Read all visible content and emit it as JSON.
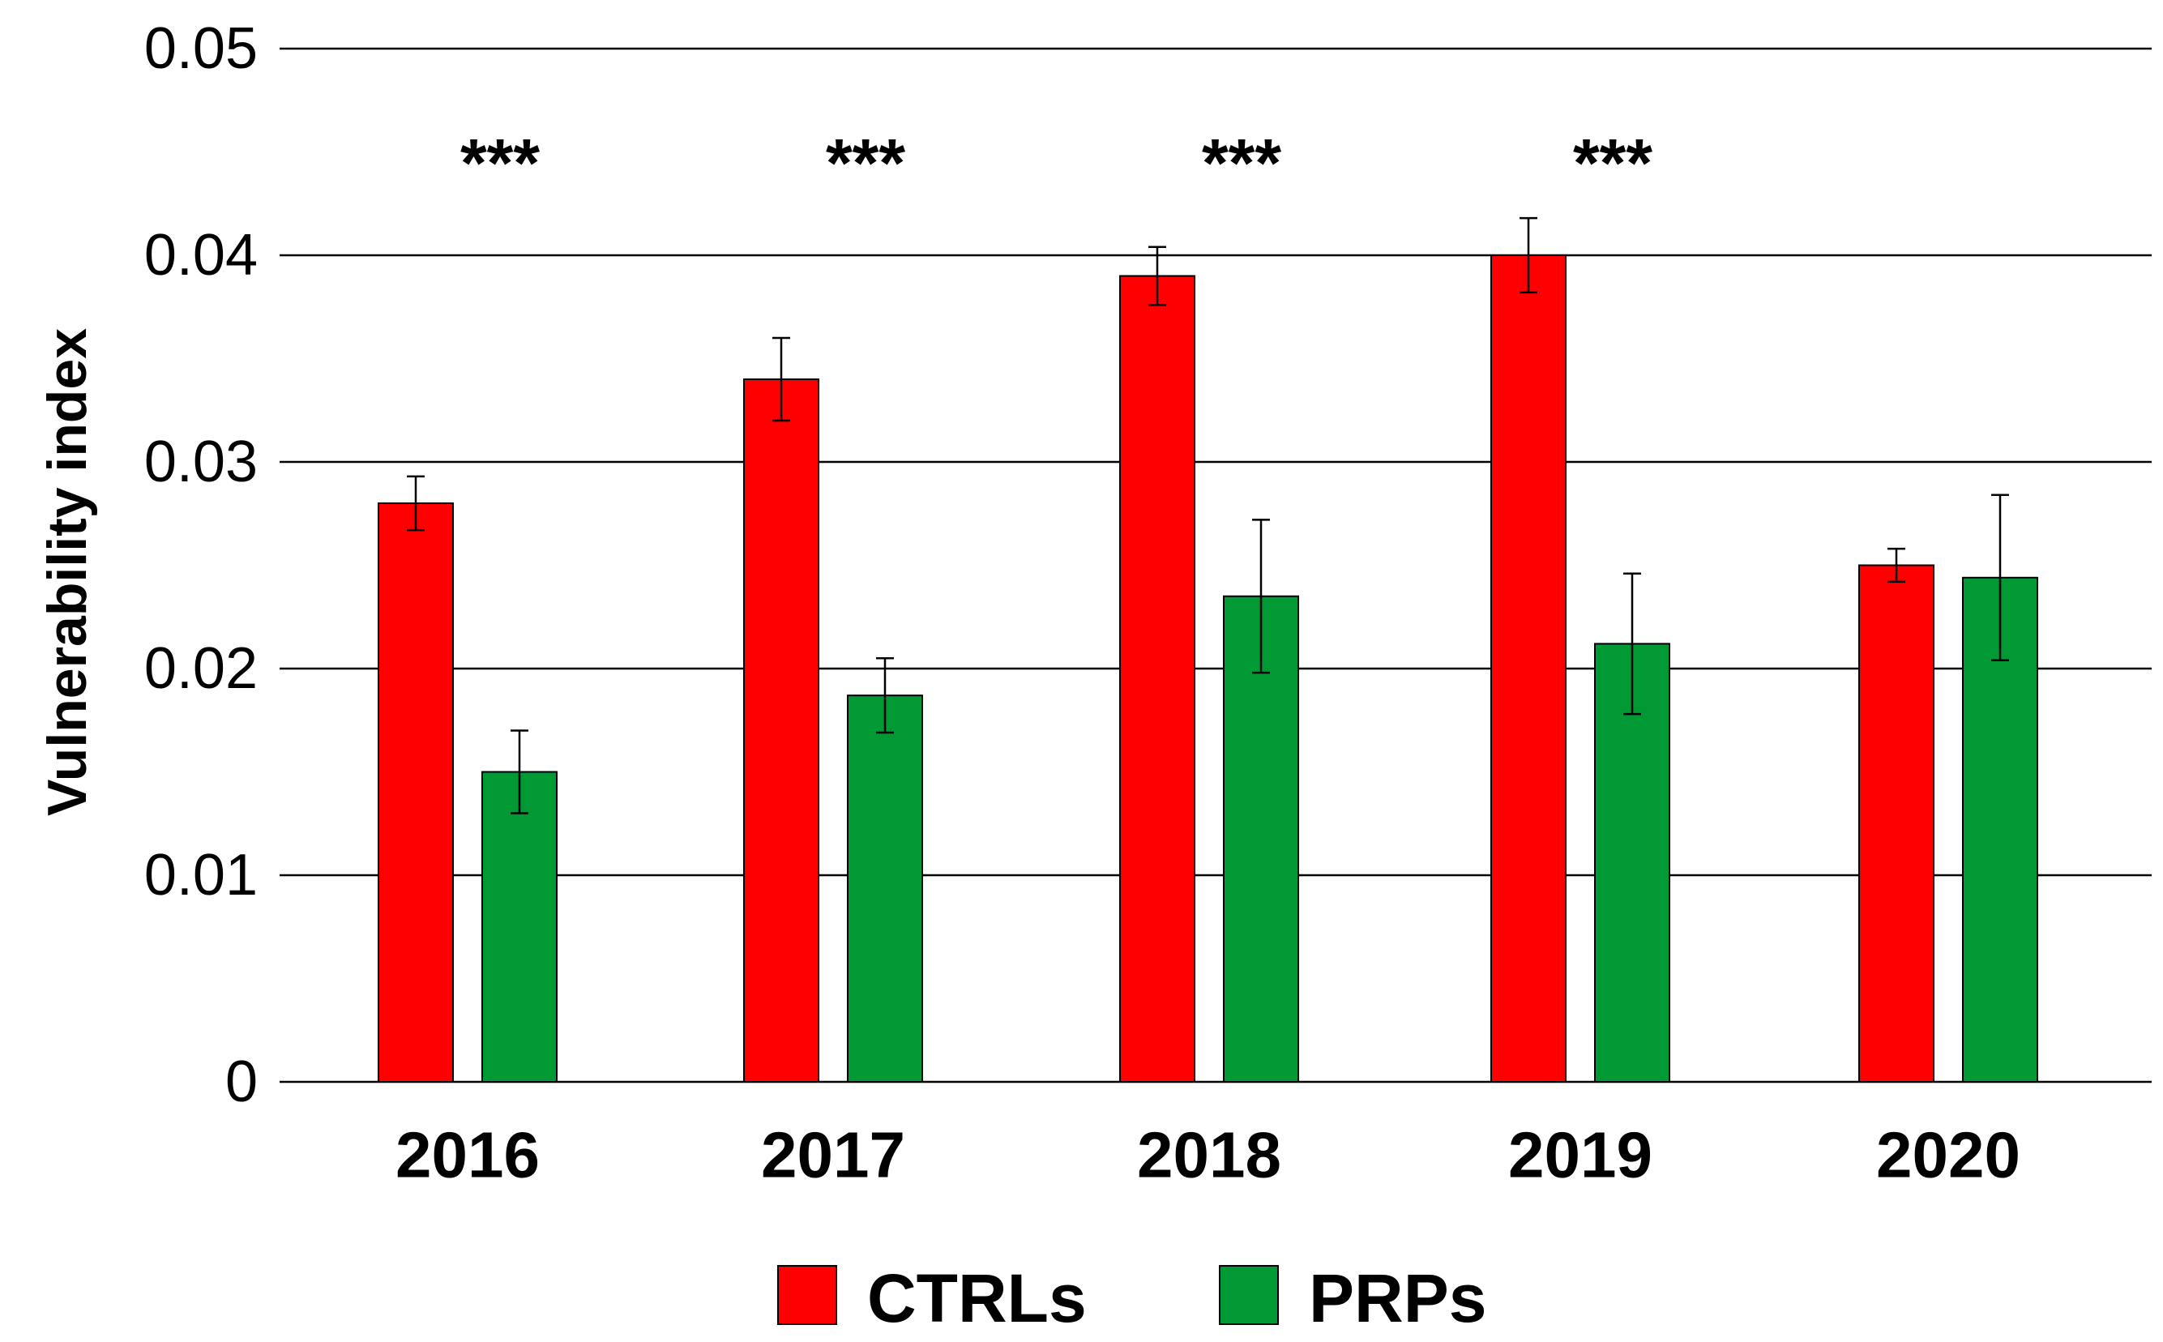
{
  "chart_data": {
    "type": "bar",
    "title": "",
    "xlabel": "",
    "ylabel": "Vulnerability index",
    "ylim": [
      0,
      0.05
    ],
    "yticks": [
      0,
      0.01,
      0.02,
      0.03,
      0.04,
      0.05
    ],
    "ytick_labels": [
      "0",
      "0.01",
      "0.02",
      "0.03",
      "0.04",
      "0.05"
    ],
    "grid": true,
    "categories": [
      "2016",
      "2017",
      "2018",
      "2019",
      "2020"
    ],
    "series": [
      {
        "name": "CTRLs",
        "color": "#ff0000",
        "values": [
          0.028,
          0.034,
          0.039,
          0.04,
          0.025
        ],
        "errors": [
          0.0013,
          0.002,
          0.0014,
          0.0018,
          0.0008
        ]
      },
      {
        "name": "PRPs",
        "color": "#009933",
        "values": [
          0.015,
          0.0187,
          0.0235,
          0.0212,
          0.0244
        ],
        "errors": [
          0.002,
          0.0018,
          0.0037,
          0.0034,
          0.004
        ]
      }
    ],
    "annotations": [
      "***",
      "***",
      "***",
      "***",
      ""
    ],
    "legend_position": "bottom-center"
  }
}
